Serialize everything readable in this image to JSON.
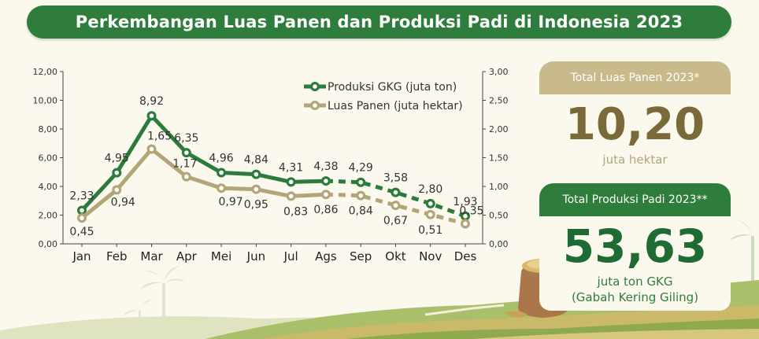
{
  "title": "Perkembangan Luas Panen dan Produksi Padi di Indonesia 2023",
  "colors": {
    "production": "#2c7a3c",
    "harvest_area": "#b3a578",
    "banner": "#2f7d3d",
    "card_tan": "#c8ba8a",
    "big_area_text": "#7a6a3a",
    "background": "#fbf9ee"
  },
  "chart_data": {
    "type": "line",
    "categories": [
      "Jan",
      "Feb",
      "Mar",
      "Apr",
      "Mei",
      "Jun",
      "Jul",
      "Ags",
      "Sep",
      "Okt",
      "Nov",
      "Des"
    ],
    "series": [
      {
        "name": "Produksi GKG (juta ton)",
        "axis": "left",
        "values": [
          2.33,
          4.95,
          8.92,
          6.35,
          4.96,
          4.84,
          4.31,
          4.38,
          4.29,
          3.58,
          2.8,
          1.93
        ],
        "labels": [
          "2,33",
          "4,95",
          "8,92",
          "6,35",
          "4,96",
          "4,84",
          "4,31",
          "4,38",
          "4,29",
          "3,58",
          "2,80",
          "1,93"
        ],
        "dashed_from_index": 7
      },
      {
        "name": "Luas Panen (juta hektar)",
        "axis": "right",
        "values": [
          0.45,
          0.94,
          1.65,
          1.17,
          0.97,
          0.95,
          0.83,
          0.86,
          0.84,
          0.67,
          0.51,
          0.35
        ],
        "labels": [
          "0,45",
          "0,94",
          "1,65",
          "1,17",
          "0,97",
          "0,95",
          "0,83",
          "0,86",
          "0,84",
          "0,67",
          "0,51",
          "0,35"
        ],
        "dashed_from_index": 7
      }
    ],
    "y_left": {
      "range": [
        0,
        12
      ],
      "ticks": [
        0,
        2,
        4,
        6,
        8,
        10,
        12
      ],
      "tick_labels": [
        "0,00",
        "2,00",
        "4,00",
        "6,00",
        "8,00",
        "10,00",
        "12,00"
      ]
    },
    "y_right": {
      "range": [
        0,
        3
      ],
      "ticks": [
        0,
        0.5,
        1,
        1.5,
        2,
        2.5,
        3
      ],
      "tick_labels": [
        "0,00",
        "0,50",
        "1,00",
        "1,50",
        "2,00",
        "2,50",
        "3,00"
      ]
    },
    "legend_position": "top-right",
    "grid": false
  },
  "cards": {
    "harvest_area": {
      "heading": "Total Luas Panen 2023*",
      "value": "10,20",
      "unit": "juta hektar"
    },
    "production": {
      "heading": "Total Produksi Padi 2023**",
      "value": "53,63",
      "unit_line1": "juta ton GKG",
      "unit_line2": "(Gabah Kering Giling)"
    }
  }
}
